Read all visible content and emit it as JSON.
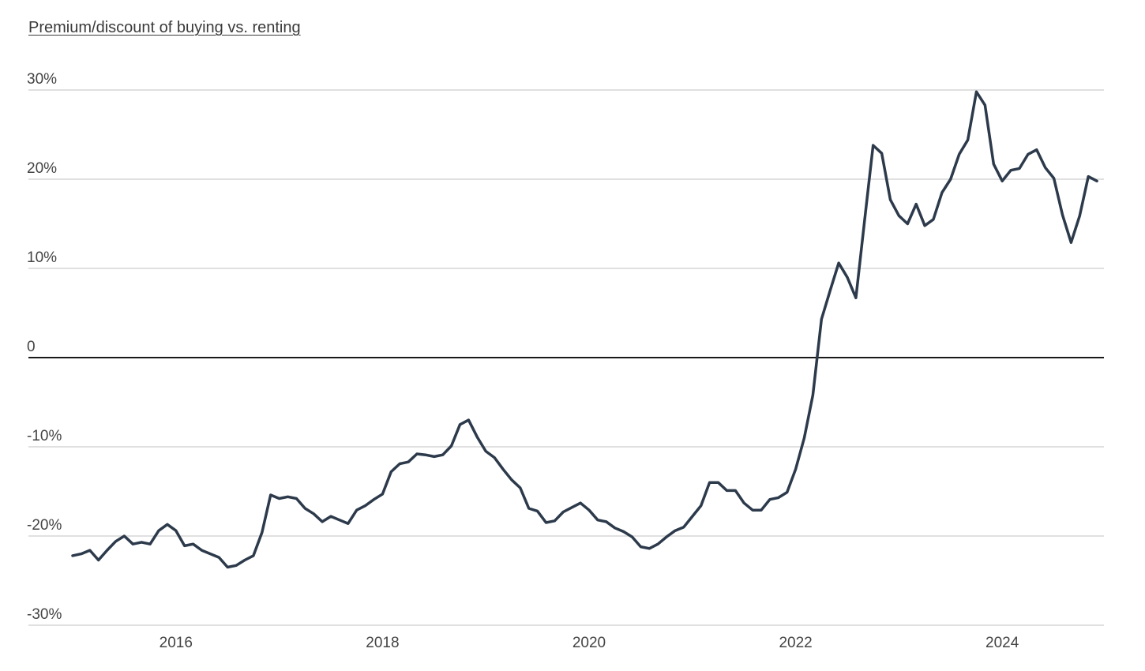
{
  "chart_data": {
    "type": "line",
    "title": "Premium/discount of buying vs. renting",
    "xlabel": "",
    "ylabel": "",
    "ylim": [
      -30,
      30
    ],
    "y_ticks": [
      30,
      20,
      10,
      0,
      -10,
      -20,
      -30
    ],
    "y_tick_labels": [
      "30%",
      "20%",
      "10%",
      "0",
      "-10%",
      "-20%",
      "-30%"
    ],
    "x_range": [
      "2015-01",
      "2024-12"
    ],
    "x_ticks": [
      "2016",
      "2018",
      "2020",
      "2022",
      "2024"
    ],
    "grid": true,
    "line_color": "#2c3a4b",
    "zero_line_color": "#1a1a1a",
    "grid_color": "#d6d6d6",
    "series": [
      {
        "x": [
          "2015-01",
          "2015-02",
          "2015-03",
          "2015-04",
          "2015-05",
          "2015-06",
          "2015-07",
          "2015-08",
          "2015-09",
          "2015-10",
          "2015-11",
          "2015-12",
          "2016-01",
          "2016-02",
          "2016-03",
          "2016-04",
          "2016-05",
          "2016-06",
          "2016-07",
          "2016-08",
          "2016-09",
          "2016-10",
          "2016-11",
          "2016-12",
          "2017-01",
          "2017-02",
          "2017-03",
          "2017-04",
          "2017-05",
          "2017-06",
          "2017-07",
          "2017-08",
          "2017-09",
          "2017-10",
          "2017-11",
          "2017-12",
          "2018-01",
          "2018-02",
          "2018-03",
          "2018-04",
          "2018-05",
          "2018-06",
          "2018-07",
          "2018-08",
          "2018-09",
          "2018-10",
          "2018-11",
          "2018-12",
          "2019-01",
          "2019-02",
          "2019-03",
          "2019-04",
          "2019-05",
          "2019-06",
          "2019-07",
          "2019-08",
          "2019-09",
          "2019-10",
          "2019-11",
          "2019-12",
          "2020-01",
          "2020-02",
          "2020-03",
          "2020-04",
          "2020-05",
          "2020-06",
          "2020-07",
          "2020-08",
          "2020-09",
          "2020-10",
          "2020-11",
          "2020-12",
          "2021-01",
          "2021-02",
          "2021-03",
          "2021-04",
          "2021-05",
          "2021-06",
          "2021-07",
          "2021-08",
          "2021-09",
          "2021-10",
          "2021-11",
          "2021-12",
          "2022-01",
          "2022-02",
          "2022-03",
          "2022-04",
          "2022-05",
          "2022-06",
          "2022-07",
          "2022-08",
          "2022-09",
          "2022-10",
          "2022-11",
          "2022-12",
          "2023-01",
          "2023-02",
          "2023-03",
          "2023-04",
          "2023-05",
          "2023-06",
          "2023-07",
          "2023-08",
          "2023-09",
          "2023-10",
          "2023-11",
          "2023-12",
          "2024-01",
          "2024-02",
          "2024-03",
          "2024-04",
          "2024-05",
          "2024-06",
          "2024-07",
          "2024-08",
          "2024-09",
          "2024-10",
          "2024-11",
          "2024-12"
        ],
        "values": [
          -22.2,
          -22.0,
          -21.6,
          -22.7,
          -21.6,
          -20.6,
          -20.0,
          -20.9,
          -20.7,
          -20.9,
          -19.4,
          -18.7,
          -19.4,
          -21.1,
          -20.9,
          -21.6,
          -22.0,
          -22.4,
          -23.5,
          -23.3,
          -22.7,
          -22.2,
          -19.6,
          -15.4,
          -15.8,
          -15.6,
          -15.8,
          -16.9,
          -17.5,
          -18.4,
          -17.8,
          -18.2,
          -18.6,
          -17.1,
          -16.6,
          -15.9,
          -15.3,
          -12.8,
          -11.9,
          -11.7,
          -10.8,
          -10.9,
          -11.1,
          -10.9,
          -9.9,
          -7.5,
          -7.0,
          -8.9,
          -10.5,
          -11.2,
          -12.5,
          -13.7,
          -14.6,
          -16.9,
          -17.2,
          -18.5,
          -18.3,
          -17.3,
          -16.8,
          -16.3,
          -17.1,
          -18.2,
          -18.4,
          -19.1,
          -19.5,
          -20.1,
          -21.2,
          -21.4,
          -20.9,
          -20.1,
          -19.4,
          -19.0,
          -17.8,
          -16.6,
          -14.0,
          -14.0,
          -14.9,
          -14.9,
          -16.3,
          -17.1,
          -17.1,
          -15.9,
          -15.7,
          -15.1,
          -12.5,
          -9.0,
          -4.2,
          4.3,
          7.5,
          10.6,
          9.0,
          6.7,
          15.3,
          23.8,
          22.9,
          17.7,
          15.9,
          15.0,
          17.2,
          14.8,
          15.5,
          18.5,
          20.0,
          22.8,
          24.4,
          29.8,
          28.3,
          21.7,
          19.8,
          21.0,
          21.2,
          22.8,
          23.3,
          21.3,
          20.1,
          16.0,
          12.9,
          15.9,
          20.3,
          19.8
        ]
      }
    ]
  }
}
